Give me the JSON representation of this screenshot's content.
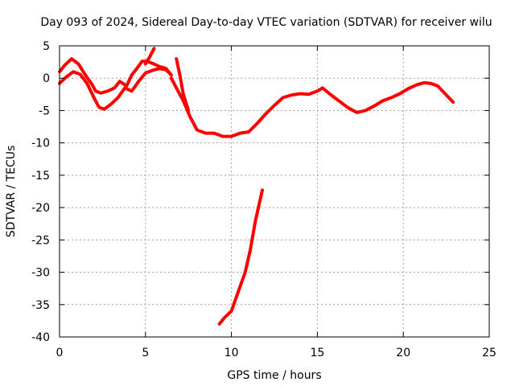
{
  "chart_data": {
    "type": "line",
    "title": "Day 093 of 2024, Sidereal Day-to-day VTEC variation (SDTVAR) for receiver wilu",
    "xlabel": "GPS time / hours",
    "ylabel": "SDTVAR / TECUs",
    "xlim": [
      0,
      25
    ],
    "ylim": [
      -40,
      5
    ],
    "xticks": [
      0,
      5,
      10,
      15,
      20,
      25
    ],
    "yticks": [
      -40,
      -35,
      -30,
      -25,
      -20,
      -15,
      -10,
      -5,
      0,
      5
    ],
    "xtick_labels": [
      "0",
      "5",
      "10",
      "15",
      "20",
      "25"
    ],
    "ytick_labels": [
      "-40",
      "-35",
      "-30",
      "-25",
      "-20",
      "-15",
      "-10",
      "-5",
      "0",
      "5"
    ],
    "grid": true,
    "color": "#ff0000",
    "series": [
      {
        "name": "main-upper",
        "x": [
          0,
          0.3,
          0.7,
          1.1,
          1.5,
          1.9,
          2.1,
          2.4,
          2.8,
          3.2,
          3.5,
          3.9,
          4.2,
          4.5,
          4.8,
          5.1,
          5.4,
          5.8,
          6.2,
          6.5
        ],
        "y": [
          1,
          2,
          3,
          2.2,
          0.5,
          -1,
          -2,
          -2.3,
          -2,
          -1.5,
          -0.5,
          -1.2,
          0.5,
          1.5,
          2.6,
          2.6,
          2.3,
          1.8,
          1.5,
          0.5
        ]
      },
      {
        "name": "main-lower",
        "x": [
          0,
          0.4,
          0.8,
          1.2,
          1.6,
          2.0,
          2.3,
          2.6,
          3.0,
          3.4,
          3.8,
          4.2,
          4.6,
          5.0,
          5.4,
          5.8,
          6.2,
          6.5
        ],
        "y": [
          -0.8,
          0.2,
          1,
          0.6,
          -0.8,
          -3,
          -4.5,
          -4.8,
          -4,
          -3,
          -1.5,
          -2,
          -0.5,
          0.8,
          1.2,
          1.5,
          1.3,
          0.5
        ]
      },
      {
        "name": "short-rise",
        "x": [
          5.0,
          5.25,
          5.5
        ],
        "y": [
          2.2,
          3.3,
          4.6
        ]
      },
      {
        "name": "main-continuation",
        "x": [
          6.5,
          6.8,
          7.2,
          7.6,
          8.0,
          8.5,
          9.0,
          9.5,
          10.0,
          10.5,
          11.0,
          11.5,
          12.0,
          12.5,
          13.0,
          13.5,
          14.0,
          14.5,
          15.0,
          15.3,
          15.7,
          16.2,
          16.8,
          17.3,
          17.8,
          18.3,
          18.8,
          19.3,
          19.8,
          20.3,
          20.8,
          21.2,
          21.6,
          22.0,
          22.5,
          22.9
        ],
        "y": [
          0,
          -1.5,
          -3.5,
          -6,
          -8,
          -8.5,
          -8.5,
          -9,
          -9,
          -8.5,
          -8.3,
          -7,
          -5.5,
          -4.2,
          -3,
          -2.6,
          -2.4,
          -2.5,
          -2.0,
          -1.5,
          -2.4,
          -3.4,
          -4.6,
          -5.3,
          -5,
          -4.3,
          -3.5,
          -3,
          -2.4,
          -1.6,
          -1.0,
          -0.7,
          -0.8,
          -1.2,
          -2.6,
          -3.7
        ]
      },
      {
        "name": "drop-segment",
        "x": [
          6.8,
          7.0,
          7.2,
          7.5
        ],
        "y": [
          3,
          0.5,
          -2.5,
          -5
        ]
      },
      {
        "name": "steep-segment",
        "x": [
          9.3,
          9.6,
          10.0,
          10.4,
          10.8,
          11.1,
          11.4,
          11.8
        ],
        "y": [
          -38,
          -37,
          -36,
          -33,
          -30,
          -26.5,
          -22,
          -17.3
        ]
      }
    ]
  }
}
